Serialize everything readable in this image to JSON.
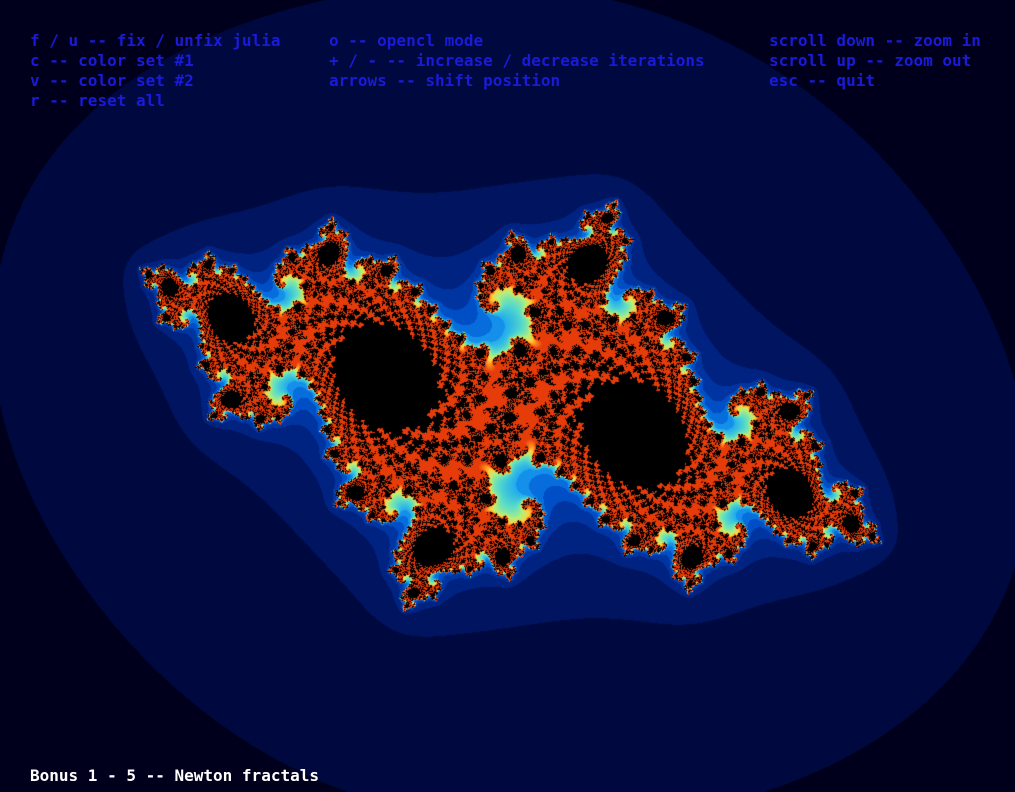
{
  "window": {
    "background": "#000000"
  },
  "hints": {
    "color": "#1a1ad9",
    "column_1": [
      "f / u -- fix / unfix julia",
      "c -- color set #1",
      "v -- color set #2",
      "r -- reset all"
    ],
    "column_2": [
      "o -- opencl mode",
      "+ / - -- increase / decrease iterations",
      "arrows -- shift position"
    ],
    "column_3": [
      "scroll down -- zoom in",
      "scroll up -- zoom out",
      "esc -- quit"
    ]
  },
  "footer": {
    "title": "Bonus 1 - 5 -- Newton fractals",
    "color": "#ffffff"
  },
  "fractal": {
    "palette": [
      "#00001c",
      "#000c48",
      "#001a72",
      "#00309a",
      "#0050c8",
      "#0a78e6",
      "#1ea8f0",
      "#5adcc8",
      "#b4f07a",
      "#ffd23c",
      "#ff8c1e",
      "#e63c0a",
      "#000000"
    ]
  }
}
